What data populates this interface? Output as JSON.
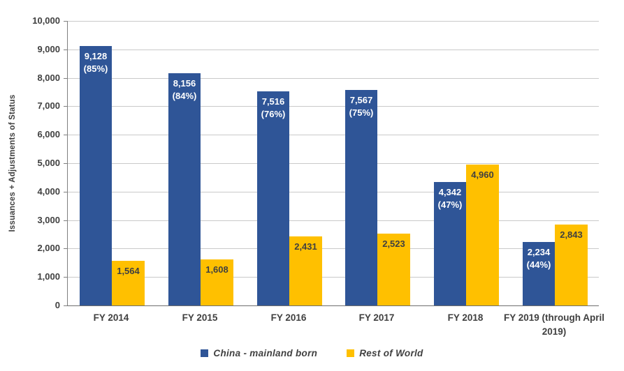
{
  "chart_data": {
    "type": "bar",
    "title": "",
    "xlabel": "",
    "ylabel": "Issuances  + Adjustments of Status",
    "ylim": [
      0,
      10000
    ],
    "ytick_step": 1000,
    "ytick_labels": [
      "0",
      "1,000",
      "2,000",
      "3,000",
      "4,000",
      "5,000",
      "6,000",
      "7,000",
      "8,000",
      "9,000",
      "10,000"
    ],
    "grid": true,
    "legend_position": "bottom",
    "categories": [
      "FY 2014",
      "FY 2015",
      "FY 2016",
      "FY 2017",
      "FY 2018",
      "FY 2019 (through April 2019)"
    ],
    "series": [
      {
        "name": "China - mainland born",
        "color": "#2F5597",
        "label_color": "#FFFFFF",
        "values": [
          9128,
          8156,
          7516,
          7567,
          4342,
          2234
        ],
        "value_labels": [
          "9,128",
          "8,156",
          "7,516",
          "7,567",
          "4,342",
          "2,234"
        ],
        "pct_labels": [
          "(85%)",
          "(84%)",
          "(76%)",
          "(75%)",
          "(47%)",
          "(44%)"
        ]
      },
      {
        "name": "Rest of World",
        "color": "#FFC000",
        "label_color": "#404040",
        "values": [
          1564,
          1608,
          2431,
          2523,
          4960,
          2843
        ],
        "value_labels": [
          "1,564",
          "1,608",
          "2,431",
          "2,523",
          "4,960",
          "2,843"
        ],
        "pct_labels": [
          "",
          "",
          "",
          "",
          "",
          ""
        ]
      }
    ],
    "colors": {
      "text": "#404040",
      "gridline": "#C9C9C9",
      "axis": "#7F7F7F",
      "background": "#FFFFFF"
    }
  }
}
